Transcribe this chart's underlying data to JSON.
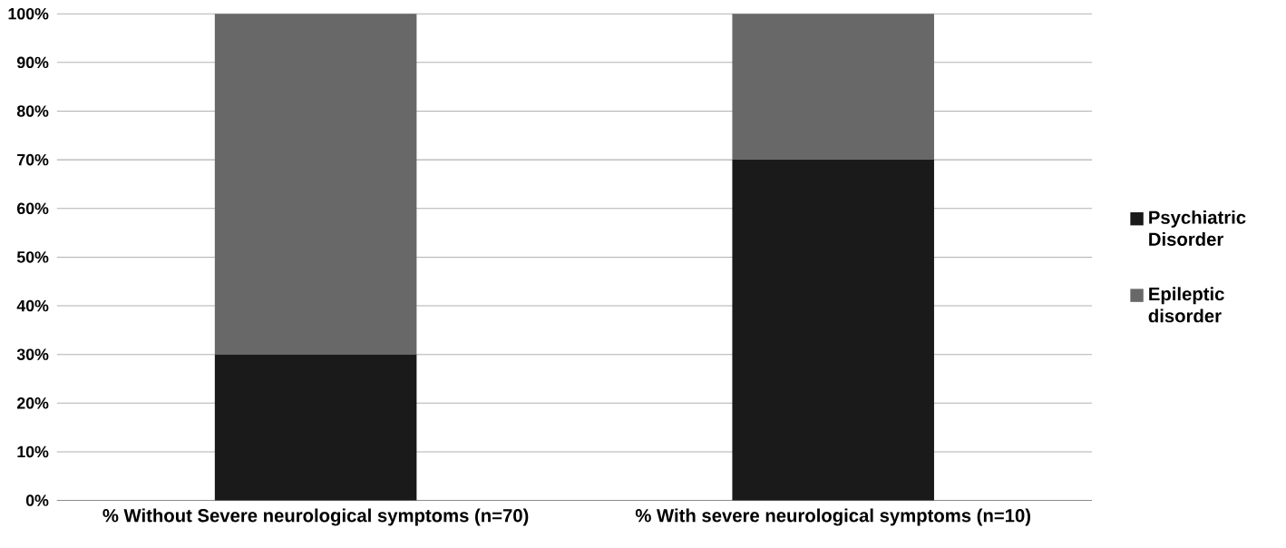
{
  "chart_data": {
    "type": "bar",
    "stacked": true,
    "categories": [
      "% Without Severe neurological symptoms  (n=70)",
      "% With severe neurological symptoms  (n=10)"
    ],
    "series": [
      {
        "name": "Psychiatric Disorder",
        "color": "#1a1a1a",
        "values": [
          30,
          70
        ]
      },
      {
        "name": "Epileptic disorder",
        "color": "#686868",
        "values": [
          70,
          30
        ]
      }
    ],
    "ylim": [
      0,
      100
    ],
    "yticks": [
      {
        "value": 0,
        "label": "0%"
      },
      {
        "value": 10,
        "label": "10%"
      },
      {
        "value": 20,
        "label": "20%"
      },
      {
        "value": 30,
        "label": "30%"
      },
      {
        "value": 40,
        "label": "40%"
      },
      {
        "value": 50,
        "label": "50%"
      },
      {
        "value": 60,
        "label": "60%"
      },
      {
        "value": 70,
        "label": "70%"
      },
      {
        "value": 80,
        "label": "80%"
      },
      {
        "value": 90,
        "label": "90%"
      },
      {
        "value": 100,
        "label": "100%"
      }
    ],
    "grid": "y",
    "legend": "right"
  }
}
